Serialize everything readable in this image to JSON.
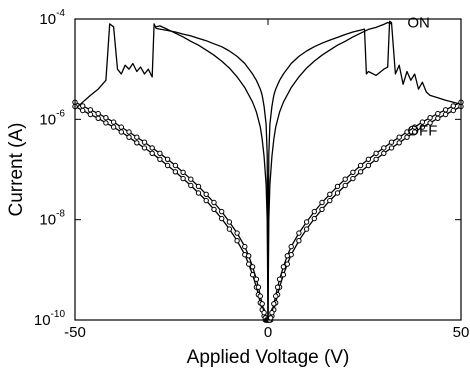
{
  "chart_data": {
    "type": "line",
    "title": "",
    "xlabel": "Applied Voltage (V)",
    "ylabel": "Current (A)",
    "x_scale": "linear",
    "y_scale": "log",
    "xlim": [
      -50,
      50
    ],
    "ylim": [
      1e-10,
      0.0001
    ],
    "x_ticks": [
      -50,
      0,
      50
    ],
    "x_tick_labels": [
      "-50",
      "0",
      "50"
    ],
    "y_ticks": [
      1e-10,
      1e-08,
      1e-06,
      0.0001
    ],
    "y_tick_labels": [
      {
        "base": "10",
        "exp": "-10"
      },
      {
        "base": "10",
        "exp": "-8"
      },
      {
        "base": "10",
        "exp": "-6"
      },
      {
        "base": "10",
        "exp": "-4"
      }
    ],
    "grid": false,
    "legend": "none",
    "annotations": [
      {
        "text": "ON",
        "x": 33,
        "y": 8.5e-05
      },
      {
        "text": "OFF",
        "x": 33,
        "y": 6e-07
      }
    ],
    "series": [
      {
        "style": "line",
        "x": [
          -50,
          -48,
          -46,
          -44,
          -42,
          -41,
          -40,
          -39,
          -38,
          -37,
          -36,
          -35,
          -34,
          -33,
          -32,
          -31,
          -30,
          -29.5,
          -29,
          -28,
          -26,
          -24,
          -22,
          -20,
          -18,
          -16,
          -14,
          -12,
          -10,
          -8,
          -6,
          -4,
          -3,
          -2,
          -1.5,
          -1,
          -0.5,
          -0.2,
          0
        ],
        "y": [
          1.6e-06,
          2.2e-06,
          3e-06,
          4e-06,
          6e-06,
          8e-05,
          7e-05,
          1e-05,
          8e-06,
          1.2e-05,
          1e-05,
          1.3e-05,
          9e-06,
          1.1e-05,
          8e-06,
          1e-05,
          7e-06,
          8e-05,
          6.5e-05,
          6.3e-05,
          5.9e-05,
          5.5e-05,
          5e-05,
          4.6e-05,
          4.1e-05,
          3.7e-05,
          3.2e-05,
          2.8e-05,
          2.3e-05,
          1.8e-05,
          1.3e-05,
          8e-06,
          6e-06,
          4e-06,
          3e-06,
          1.8e-06,
          8e-07,
          2e-07,
          1e-10
        ]
      },
      {
        "style": "line",
        "x": [
          0,
          0.2,
          0.5,
          1,
          1.5,
          2,
          3,
          4,
          6,
          8,
          10,
          12,
          14,
          16,
          18,
          20,
          22,
          24,
          25,
          25.5,
          26,
          28,
          30,
          31,
          31.5,
          32,
          33,
          34,
          35,
          36,
          37,
          38,
          39,
          40,
          41,
          42,
          44,
          46,
          48,
          50
        ],
        "y": [
          1e-10,
          2e-07,
          8e-07,
          1.8e-06,
          3e-06,
          4e-06,
          6e-06,
          8e-06,
          1.3e-05,
          1.8e-05,
          2.3e-05,
          2.8e-05,
          3.3e-05,
          3.8e-05,
          4.3e-05,
          4.9e-05,
          5.5e-05,
          6e-05,
          6.3e-05,
          8e-06,
          9e-06,
          7.5e-06,
          1e-05,
          1.1e-05,
          9e-05,
          8.5e-05,
          8e-06,
          1.2e-05,
          5e-06,
          9e-06,
          6e-06,
          8e-06,
          4e-06,
          5.5e-06,
          3.5e-06,
          3e-06,
          2.7e-06,
          2.4e-06,
          2.2e-06,
          2e-06
        ]
      },
      {
        "style": "line",
        "x": [
          -29,
          -28,
          -26,
          -24,
          -22,
          -20,
          -18,
          -16,
          -14,
          -12,
          -10,
          -8,
          -6,
          -4,
          -3,
          -2,
          -1.5,
          -1,
          -0.5,
          -0.2,
          0
        ],
        "y": [
          7e-05,
          7.3e-05,
          6.2e-05,
          5.2e-05,
          4.4e-05,
          3.6e-05,
          3e-05,
          2.4e-05,
          1.9e-05,
          1.45e-05,
          1.05e-05,
          7e-06,
          4.3e-06,
          2.2e-06,
          1.4e-06,
          7e-07,
          4e-07,
          1.8e-07,
          5e-08,
          1e-08,
          1e-10
        ]
      },
      {
        "style": "line",
        "x": [
          0,
          0.2,
          0.5,
          1,
          1.5,
          2,
          3,
          4,
          6,
          8,
          10,
          12,
          14,
          16,
          18,
          20,
          22,
          24,
          26,
          28,
          30,
          31,
          32
        ],
        "y": [
          1e-10,
          1e-08,
          5e-08,
          1.8e-07,
          4e-07,
          7e-07,
          1.4e-06,
          2.2e-06,
          4.3e-06,
          7e-06,
          1.05e-05,
          1.45e-05,
          1.9e-05,
          2.4e-05,
          3e-05,
          3.6e-05,
          4.4e-05,
          5.2e-05,
          6.2e-05,
          6.8e-05,
          7.8e-05,
          8.5e-05,
          8e-05
        ]
      },
      {
        "style": "markers",
        "x": [
          -50,
          -48,
          -46,
          -44,
          -42,
          -40,
          -38,
          -36,
          -34,
          -32,
          -30,
          -28,
          -26,
          -24,
          -22,
          -20,
          -18,
          -16,
          -14,
          -12,
          -10,
          -8,
          -6,
          -5,
          -4,
          -3,
          -2.5,
          -2,
          -1.5,
          -1,
          -0.7,
          -0.4,
          -0.2,
          0,
          0.2,
          0.4,
          0.7,
          1,
          1.5,
          2,
          2.5,
          3,
          4,
          5,
          6,
          8,
          10,
          12,
          14,
          16,
          18,
          20,
          22,
          24,
          26,
          28,
          30,
          32,
          34,
          36,
          38,
          40,
          42,
          44,
          46,
          48,
          50
        ],
        "y": [
          1.8e-06,
          1.5e-06,
          1.25e-06,
          1.05e-06,
          8.5e-07,
          7e-07,
          5.6e-07,
          4.4e-07,
          3.4e-07,
          2.7e-07,
          2.1e-07,
          1.6e-07,
          1.2e-07,
          9e-08,
          6.6e-08,
          4.8e-08,
          3.4e-08,
          2.4e-08,
          1.6e-08,
          1.05e-08,
          6.5e-09,
          3.8e-09,
          2e-09,
          1.3e-09,
          8e-10,
          4.5e-10,
          3.2e-10,
          2.2e-10,
          1.6e-10,
          1.2e-10,
          1e-10,
          1e-10,
          1e-10,
          1e-10,
          1e-10,
          1e-10,
          1e-10,
          1.2e-10,
          1.6e-10,
          2.2e-10,
          3.2e-10,
          4.5e-10,
          8e-10,
          1.3e-09,
          2e-09,
          3.8e-09,
          6.5e-09,
          1.05e-08,
          1.6e-08,
          2.4e-08,
          3.4e-08,
          4.8e-08,
          6.6e-08,
          9e-08,
          1.2e-07,
          1.6e-07,
          2.1e-07,
          2.7e-07,
          3.4e-07,
          4.4e-07,
          5.6e-07,
          7e-07,
          8.5e-07,
          1.05e-06,
          1.25e-06,
          1.5e-06,
          1.8e-06
        ]
      },
      {
        "style": "markers",
        "x": [
          -50,
          -48,
          -46,
          -44,
          -42,
          -40,
          -38,
          -36,
          -34,
          -32,
          -30,
          -28,
          -26,
          -24,
          -22,
          -20,
          -18,
          -16,
          -14,
          -12,
          -10,
          -8,
          -6,
          -5,
          -4,
          -3,
          -2.5,
          -2,
          -1.5,
          -1,
          -0.7,
          -0.4,
          -0.2,
          0,
          0.2,
          0.4,
          0.7,
          1,
          1.5,
          2,
          2.5,
          3,
          4,
          5,
          6,
          8,
          10,
          12,
          14,
          16,
          18,
          20,
          22,
          24,
          26,
          28,
          30,
          32,
          34,
          36,
          38,
          40,
          42,
          44,
          46,
          48,
          50
        ],
        "y": [
          2.2e-06,
          1.85e-06,
          1.55e-06,
          1.3e-06,
          1.08e-06,
          8.8e-07,
          7e-07,
          5.6e-07,
          4.4e-07,
          3.5e-07,
          2.7e-07,
          2.1e-07,
          1.6e-07,
          1.2e-07,
          8.8e-08,
          6.4e-08,
          4.6e-08,
          3.2e-08,
          2.2e-08,
          1.45e-08,
          9e-09,
          5.4e-09,
          2.9e-09,
          1.9e-09,
          1.15e-09,
          6.5e-10,
          4.5e-10,
          3e-10,
          2.1e-10,
          1.4e-10,
          1.1e-10,
          1e-10,
          1e-10,
          1e-10,
          1e-10,
          1e-10,
          1.1e-10,
          1.4e-10,
          2.1e-10,
          3e-10,
          4.5e-10,
          6.5e-10,
          1.15e-09,
          1.9e-09,
          2.9e-09,
          5.4e-09,
          9e-09,
          1.45e-08,
          2.2e-08,
          3.2e-08,
          4.6e-08,
          6.4e-08,
          8.8e-08,
          1.2e-07,
          1.6e-07,
          2.1e-07,
          2.7e-07,
          3.5e-07,
          4.4e-07,
          5.6e-07,
          7e-07,
          8.8e-07,
          1.08e-06,
          1.3e-06,
          1.55e-06,
          1.85e-06,
          2.2e-06
        ]
      }
    ]
  }
}
